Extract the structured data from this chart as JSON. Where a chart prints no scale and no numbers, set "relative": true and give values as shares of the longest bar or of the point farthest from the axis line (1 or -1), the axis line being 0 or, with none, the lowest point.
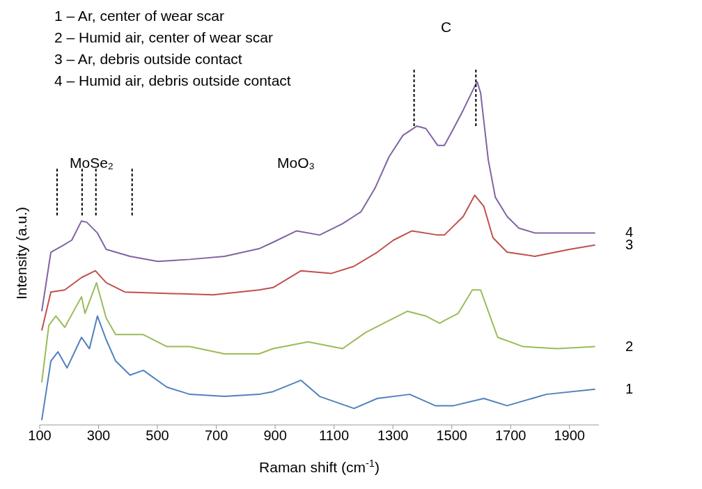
{
  "chart_data": {
    "type": "line",
    "relative": true,
    "xlabel": "Raman shift (cm$^{-1}$)",
    "ylabel": "Intensity (a.u.)",
    "xlim": [
      100,
      2000
    ],
    "xticks": [
      100,
      300,
      500,
      700,
      900,
      1100,
      1300,
      1500,
      1700,
      1900
    ],
    "grid": false,
    "legend": false,
    "marker": "none",
    "line_style": "solid",
    "annotations": [
      "1 – Ar, center of wear scar",
      "2 – Humid air, center of wear scar",
      "3 – Ar, debris outside contact",
      "4 – Humid air, debris outside contact",
      "MoSe₂",
      "MoO₃",
      "C"
    ],
    "ref_lines": [
      {
        "axis": "x",
        "value": 159,
        "label": null,
        "line_style": "dashed",
        "color": "#000000"
      },
      {
        "axis": "x",
        "value": 244,
        "label": null,
        "line_style": "dashed",
        "color": "#000000"
      },
      {
        "axis": "x",
        "value": 291,
        "label": null,
        "line_style": "dashed",
        "color": "#000000"
      },
      {
        "axis": "x",
        "value": 414,
        "label": null,
        "line_style": "dashed",
        "color": "#000000"
      },
      {
        "axis": "x",
        "value": 1372,
        "label": null,
        "line_style": "dashed",
        "color": "#000000"
      },
      {
        "axis": "x",
        "value": 1582,
        "label": null,
        "line_style": "dashed",
        "color": "#000000"
      }
    ],
    "series": [
      {
        "name": "1",
        "color": "#4f81bd",
        "x": [
          107,
          138,
          162,
          193,
          242,
          269,
          296,
          326,
          358,
          407,
          452,
          532,
          610,
          728,
          845,
          893,
          988,
          1051,
          1168,
          1247,
          1357,
          1444,
          1506,
          1609,
          1688,
          1821,
          1987
        ],
        "values": [
          0.014,
          0.186,
          0.213,
          0.166,
          0.255,
          0.222,
          0.317,
          0.248,
          0.186,
          0.145,
          0.159,
          0.11,
          0.089,
          0.083,
          0.089,
          0.097,
          0.13,
          0.083,
          0.048,
          0.077,
          0.089,
          0.056,
          0.056,
          0.077,
          0.056,
          0.089,
          0.104
        ]
      },
      {
        "name": "2",
        "color": "#9bbb59",
        "x": [
          107,
          131,
          155,
          185,
          242,
          254,
          293,
          326,
          358,
          452,
          532,
          610,
          728,
          845,
          893,
          1012,
          1129,
          1207,
          1287,
          1349,
          1412,
          1459,
          1475,
          1522,
          1570,
          1598,
          1624,
          1656,
          1743,
          1860,
          1987
        ],
        "values": [
          0.124,
          0.29,
          0.317,
          0.284,
          0.373,
          0.325,
          0.414,
          0.311,
          0.263,
          0.263,
          0.228,
          0.228,
          0.207,
          0.207,
          0.222,
          0.242,
          0.222,
          0.269,
          0.304,
          0.331,
          0.317,
          0.296,
          0.304,
          0.325,
          0.393,
          0.393,
          0.331,
          0.255,
          0.228,
          0.222,
          0.228
        ]
      },
      {
        "name": "3",
        "color": "#c0504d",
        "x": [
          107,
          138,
          185,
          242,
          289,
          326,
          389,
          532,
          689,
          845,
          893,
          988,
          1090,
          1168,
          1247,
          1302,
          1365,
          1452,
          1475,
          1539,
          1578,
          1609,
          1640,
          1688,
          1782,
          1900,
          1987
        ],
        "values": [
          0.275,
          0.387,
          0.393,
          0.429,
          0.449,
          0.414,
          0.387,
          0.383,
          0.379,
          0.393,
          0.4,
          0.449,
          0.441,
          0.462,
          0.503,
          0.538,
          0.565,
          0.553,
          0.553,
          0.607,
          0.669,
          0.636,
          0.545,
          0.503,
          0.491,
          0.511,
          0.524
        ]
      },
      {
        "name": "4",
        "color": "#8064a2",
        "x": [
          107,
          138,
          178,
          209,
          242,
          260,
          296,
          326,
          407,
          501,
          610,
          728,
          845,
          893,
          973,
          1051,
          1129,
          1192,
          1239,
          1287,
          1334,
          1381,
          1412,
          1452,
          1475,
          1506,
          1539,
          1586,
          1598,
          1624,
          1648,
          1688,
          1728,
          1782,
          1860,
          1987
        ],
        "values": [
          0.331,
          0.503,
          0.522,
          0.538,
          0.594,
          0.59,
          0.559,
          0.511,
          0.491,
          0.476,
          0.482,
          0.491,
          0.513,
          0.532,
          0.565,
          0.553,
          0.586,
          0.621,
          0.689,
          0.781,
          0.843,
          0.87,
          0.863,
          0.814,
          0.814,
          0.863,
          0.917,
          1.0,
          0.967,
          0.772,
          0.663,
          0.607,
          0.573,
          0.559,
          0.559,
          0.559
        ]
      }
    ]
  }
}
